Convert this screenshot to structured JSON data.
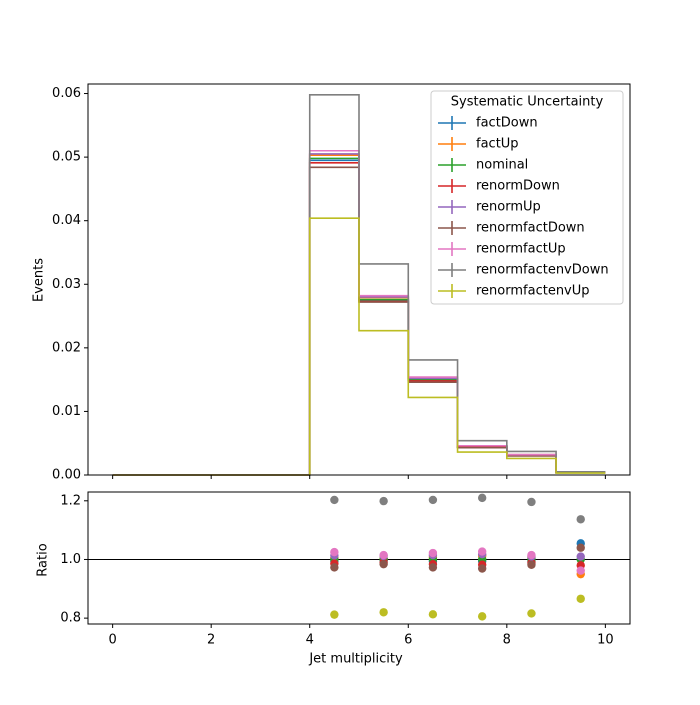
{
  "chart_data": [
    {
      "type": "line",
      "style": "step-histogram",
      "xlabel": "",
      "ylabel": "Events",
      "xlim": [
        -0.5,
        10.5
      ],
      "ylim": [
        0,
        0.0615
      ],
      "yticks": [
        0,
        0.01,
        0.02,
        0.03,
        0.04,
        0.05,
        0.06
      ],
      "ytick_labels": [
        "0.00",
        "0.01",
        "0.02",
        "0.03",
        "0.04",
        "0.05",
        "0.06"
      ],
      "bin_edges": [
        0,
        1,
        2,
        3,
        4,
        5,
        6,
        7,
        8,
        9,
        10
      ],
      "legend": {
        "title": "Systematic Uncertainty",
        "placement": "upper right"
      },
      "series": [
        {
          "name": "factDown",
          "color": "#1f77b4",
          "values": [
            0,
            0,
            0,
            0,
            0.0495,
            0.0275,
            0.0149,
            0.0044,
            0.0031,
            0.0004
          ]
        },
        {
          "name": "factUp",
          "color": "#ff7f0e",
          "values": [
            0,
            0,
            0,
            0,
            0.0503,
            0.0279,
            0.0152,
            0.0046,
            0.0032,
            0.0004
          ]
        },
        {
          "name": "nominal",
          "color": "#2ca02c",
          "values": [
            0,
            0,
            0,
            0,
            0.0498,
            0.0276,
            0.015,
            0.0045,
            0.0031,
            0.0004
          ]
        },
        {
          "name": "renormDown",
          "color": "#d62728",
          "values": [
            0,
            0,
            0,
            0,
            0.0491,
            0.0273,
            0.0148,
            0.0044,
            0.0031,
            0.0004
          ]
        },
        {
          "name": "renormUp",
          "color": "#9467bd",
          "values": [
            0,
            0,
            0,
            0,
            0.0505,
            0.028,
            0.0152,
            0.0046,
            0.0032,
            0.0004
          ]
        },
        {
          "name": "renormfactDown",
          "color": "#8c564b",
          "values": [
            0,
            0,
            0,
            0,
            0.0484,
            0.0272,
            0.0146,
            0.0043,
            0.003,
            0.0004
          ]
        },
        {
          "name": "renormfactUp",
          "color": "#e377c2",
          "values": [
            0,
            0,
            0,
            0,
            0.051,
            0.0282,
            0.0154,
            0.0046,
            0.0032,
            0.0004
          ]
        },
        {
          "name": "renormfactenvDown",
          "color": "#7f7f7f",
          "values": [
            0,
            0,
            0,
            0,
            0.0598,
            0.0332,
            0.0181,
            0.0054,
            0.0037,
            0.0005
          ]
        },
        {
          "name": "renormfactenvUp",
          "color": "#bcbd22",
          "values": [
            0,
            0,
            0,
            0,
            0.0404,
            0.0227,
            0.0122,
            0.0036,
            0.0026,
            0.0003
          ]
        }
      ]
    },
    {
      "type": "scatter",
      "xlabel": "Jet multiplicity",
      "ylabel": "Ratio",
      "xlim": [
        -0.5,
        10.5
      ],
      "ylim": [
        0.78,
        1.23
      ],
      "xticks": [
        0,
        2,
        4,
        6,
        8,
        10
      ],
      "xtick_labels": [
        "0",
        "2",
        "4",
        "6",
        "8",
        "10"
      ],
      "yticks": [
        0.8,
        1.0,
        1.2
      ],
      "ytick_labels": [
        "0.8",
        "1.0",
        "1.2"
      ],
      "reference_line": 1.0,
      "x": [
        4.5,
        5.5,
        6.5,
        7.5,
        8.5,
        9.5
      ],
      "series": [
        {
          "name": "factDown",
          "color": "#1f77b4",
          "values": [
            0.994,
            0.996,
            0.994,
            0.994,
            0.994,
            1.055
          ]
        },
        {
          "name": "factUp",
          "color": "#ff7f0e",
          "values": [
            1.006,
            1.004,
            1.007,
            1.012,
            1.005,
            0.95
          ]
        },
        {
          "name": "nominal",
          "color": "#2ca02c",
          "values": [
            1.0,
            1.0,
            1.0,
            1.0,
            1.0,
            1.0
          ]
        },
        {
          "name": "renormDown",
          "color": "#d62728",
          "values": [
            0.986,
            0.99,
            0.984,
            0.982,
            0.988,
            0.98
          ]
        },
        {
          "name": "renormUp",
          "color": "#9467bd",
          "values": [
            1.014,
            1.012,
            1.015,
            1.018,
            1.01,
            1.01
          ]
        },
        {
          "name": "renormfactDown",
          "color": "#8c564b",
          "values": [
            0.973,
            0.984,
            0.973,
            0.969,
            0.982,
            1.04
          ]
        },
        {
          "name": "renormfactUp",
          "color": "#e377c2",
          "values": [
            1.025,
            1.015,
            1.022,
            1.027,
            1.015,
            0.962
          ]
        },
        {
          "name": "renormfactenvDown",
          "color": "#7f7f7f",
          "values": [
            1.203,
            1.199,
            1.203,
            1.21,
            1.196,
            1.137
          ]
        },
        {
          "name": "renormfactenvUp",
          "color": "#bcbd22",
          "values": [
            0.812,
            0.82,
            0.813,
            0.806,
            0.816,
            0.866
          ]
        }
      ]
    }
  ]
}
